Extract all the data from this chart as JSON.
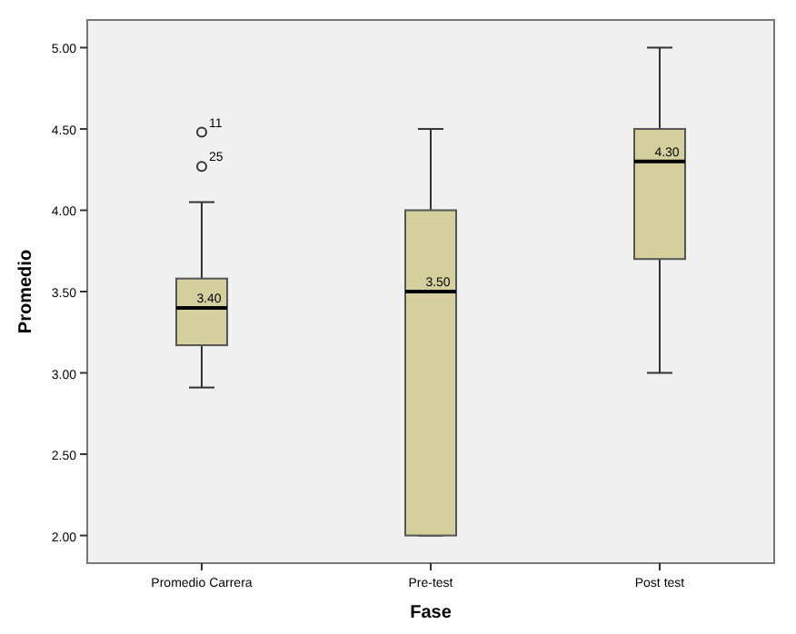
{
  "chart_data": {
    "type": "box",
    "xlabel": "Fase",
    "ylabel": "Promedio",
    "categories": [
      "Promedio Carrera",
      "Pre-test",
      "Post test"
    ],
    "color": "#d4cf9c",
    "boxes": [
      {
        "low": 2.91,
        "q1": 3.17,
        "median": 3.4,
        "q3": 3.58,
        "high": 4.05,
        "outliers": [
          4.48,
          4.27
        ]
      },
      {
        "low": 2.0,
        "q1": 2.0,
        "median": 3.5,
        "q3": 4.0,
        "high": 4.5
      },
      {
        "low": 3.0,
        "q1": 3.7,
        "median": 4.3,
        "q3": 4.5,
        "high": 5.0
      }
    ],
    "value_labels": [
      "3.40",
      "3.50",
      "4.30"
    ],
    "ylim": [
      1.83,
      5.17
    ],
    "yticks": [
      {
        "value": 2,
        "label": "2.00"
      },
      {
        "value": 2.5,
        "label": "2.50"
      },
      {
        "value": 3,
        "label": "3.00"
      },
      {
        "value": 3.5,
        "label": "3.50"
      },
      {
        "value": 4,
        "label": "4.00"
      },
      {
        "value": 4.5,
        "label": "4.50"
      },
      {
        "value": 5,
        "label": "5.00"
      }
    ],
    "annotations": [
      "11",
      "25"
    ],
    "grid": false
  }
}
